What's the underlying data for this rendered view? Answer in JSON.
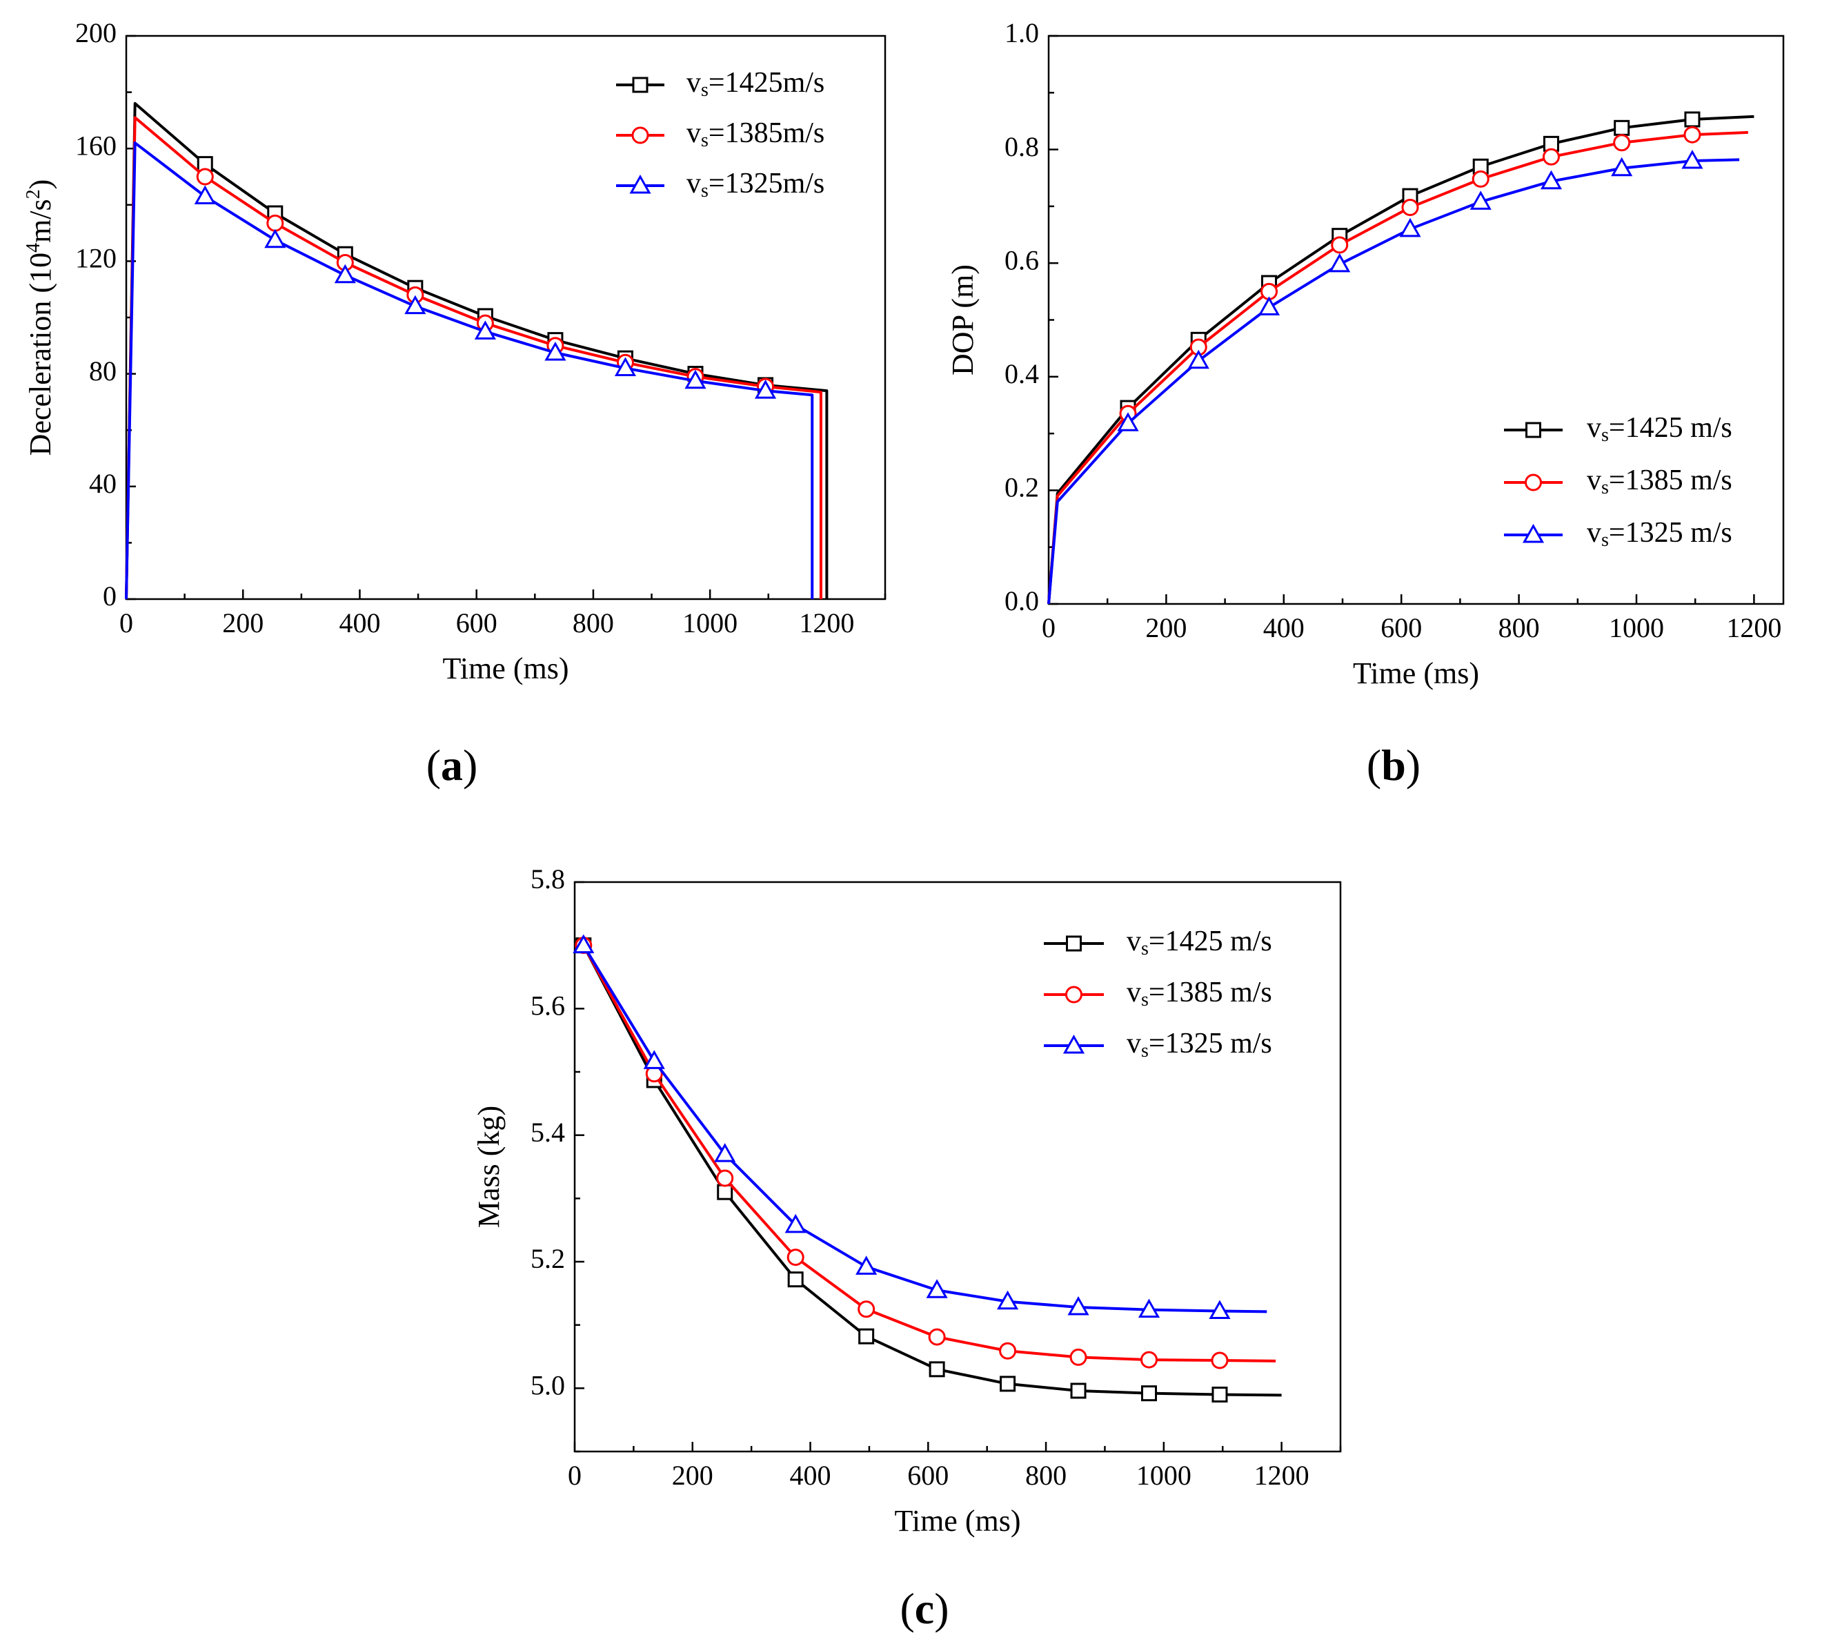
{
  "colors": {
    "black_series": "#000000",
    "red_series": "#ff0000",
    "blue_series": "#0000ff"
  },
  "chart_data": [
    {
      "id": "a",
      "type": "line",
      "panel_label": {
        "open": "(",
        "letter": "a",
        "close": ")"
      },
      "xlabel": "Time (ms)",
      "ylabel": {
        "main": "Deceleration (10",
        "sup1": "4",
        "mid": "m/s",
        "sup2": "2",
        "end": ")"
      },
      "xlim": [
        0,
        1300
      ],
      "ylim": [
        0,
        200
      ],
      "xticks": [
        0,
        200,
        400,
        600,
        800,
        1000,
        1200
      ],
      "yticks": [
        0,
        40,
        80,
        120,
        160,
        200
      ],
      "legend_placement": "top-right",
      "series": [
        {
          "legend": {
            "prefix": "v",
            "sub": "s",
            "suffix": "=1425m/s"
          },
          "color": "#000000",
          "marker": "square",
          "x": [
            0,
            15,
            135,
            255,
            375,
            495,
            615,
            735,
            855,
            975,
            1095,
            1200,
            1200
          ],
          "y": [
            0,
            176,
            154.5,
            137,
            122.5,
            110.5,
            100.5,
            92,
            85.5,
            80,
            76,
            74,
            0
          ],
          "marker_x": [
            135,
            255,
            375,
            495,
            615,
            735,
            855,
            975,
            1095
          ]
        },
        {
          "legend": {
            "prefix": "v",
            "sub": "s",
            "suffix": "=1385m/s"
          },
          "color": "#ff0000",
          "marker": "circle",
          "x": [
            0,
            15,
            135,
            255,
            375,
            495,
            615,
            735,
            855,
            975,
            1095,
            1190,
            1190
          ],
          "y": [
            0,
            171,
            150,
            133.5,
            119.5,
            108,
            98,
            90,
            84,
            79,
            75.5,
            73.5,
            0
          ],
          "marker_x": [
            135,
            255,
            375,
            495,
            615,
            735,
            855,
            975,
            1095
          ]
        },
        {
          "legend": {
            "prefix": "v",
            "sub": "s",
            "suffix": "=1325m/s"
          },
          "color": "#0000ff",
          "marker": "triangle",
          "x": [
            0,
            15,
            135,
            255,
            375,
            495,
            615,
            735,
            855,
            975,
            1095,
            1175,
            1175
          ],
          "y": [
            0,
            162,
            143,
            127.5,
            115,
            104,
            95,
            87.5,
            82,
            77.5,
            74,
            72.5,
            0
          ],
          "marker_x": [
            135,
            255,
            375,
            495,
            615,
            735,
            855,
            975,
            1095
          ]
        }
      ]
    },
    {
      "id": "b",
      "type": "line",
      "panel_label": {
        "open": "(",
        "letter": "b",
        "close": ")"
      },
      "xlabel": "Time (ms)",
      "ylabel": {
        "main": "DOP (m)"
      },
      "xlim": [
        0,
        1250
      ],
      "ylim": [
        0,
        1.0
      ],
      "xticks": [
        0,
        200,
        400,
        600,
        800,
        1000,
        1200
      ],
      "yticks": [
        0.0,
        0.2,
        0.4,
        0.6,
        0.8,
        1.0
      ],
      "ytick_labels": [
        "0.0",
        "0.2",
        "0.4",
        "0.6",
        "0.8",
        "1.0"
      ],
      "legend_placement": "bottom-right",
      "series": [
        {
          "legend": {
            "prefix": "v",
            "sub": "s",
            "suffix": "=1425 m/s"
          },
          "color": "#000000",
          "marker": "square",
          "x": [
            0,
            15,
            135,
            255,
            375,
            495,
            615,
            735,
            855,
            975,
            1095,
            1200
          ],
          "y": [
            0,
            0.195,
            0.345,
            0.465,
            0.565,
            0.648,
            0.718,
            0.77,
            0.81,
            0.838,
            0.853,
            0.858
          ],
          "marker_x": [
            135,
            255,
            375,
            495,
            615,
            735,
            855,
            975,
            1095
          ]
        },
        {
          "legend": {
            "prefix": "v",
            "sub": "s",
            "suffix": "=1385 m/s"
          },
          "color": "#ff0000",
          "marker": "circle",
          "x": [
            0,
            15,
            135,
            255,
            375,
            495,
            615,
            735,
            855,
            975,
            1095,
            1190
          ],
          "y": [
            0,
            0.19,
            0.335,
            0.452,
            0.55,
            0.632,
            0.698,
            0.748,
            0.787,
            0.812,
            0.826,
            0.83
          ],
          "marker_x": [
            135,
            255,
            375,
            495,
            615,
            735,
            855,
            975,
            1095
          ]
        },
        {
          "legend": {
            "prefix": "v",
            "sub": "s",
            "suffix": "=1325 m/s"
          },
          "color": "#0000ff",
          "marker": "triangle",
          "x": [
            0,
            15,
            135,
            255,
            375,
            495,
            615,
            735,
            855,
            975,
            1095,
            1175
          ],
          "y": [
            0,
            0.18,
            0.318,
            0.428,
            0.522,
            0.598,
            0.66,
            0.708,
            0.744,
            0.767,
            0.78,
            0.782
          ],
          "marker_x": [
            135,
            255,
            375,
            495,
            615,
            735,
            855,
            975,
            1095
          ]
        }
      ]
    },
    {
      "id": "c",
      "type": "line",
      "panel_label": {
        "open": "(",
        "letter": "c",
        "close": ")"
      },
      "xlabel": "Time (ms)",
      "ylabel": {
        "main": "Mass (kg)"
      },
      "xlim": [
        0,
        1300
      ],
      "ylim": [
        4.9,
        5.8
      ],
      "xticks": [
        0,
        200,
        400,
        600,
        800,
        1000,
        1200
      ],
      "yticks": [
        5.0,
        5.2,
        5.4,
        5.6,
        5.8
      ],
      "ytick_labels": [
        "5.0",
        "5.2",
        "5.4",
        "5.6",
        "5.8"
      ],
      "legend_placement": "top-right",
      "series": [
        {
          "legend": {
            "prefix": "v",
            "sub": "s",
            "suffix": "=1425 m/s"
          },
          "color": "#000000",
          "marker": "square",
          "x": [
            15,
            135,
            255,
            375,
            495,
            615,
            735,
            855,
            975,
            1095,
            1200
          ],
          "y": [
            5.7,
            5.487,
            5.31,
            5.172,
            5.082,
            5.03,
            5.007,
            4.996,
            4.992,
            4.99,
            4.989
          ],
          "marker_x": [
            15,
            135,
            255,
            375,
            495,
            615,
            735,
            855,
            975,
            1095
          ]
        },
        {
          "legend": {
            "prefix": "v",
            "sub": "s",
            "suffix": "=1385 m/s"
          },
          "color": "#ff0000",
          "marker": "circle",
          "x": [
            15,
            135,
            255,
            375,
            495,
            615,
            735,
            855,
            975,
            1095,
            1190
          ],
          "y": [
            5.7,
            5.497,
            5.332,
            5.207,
            5.125,
            5.081,
            5.059,
            5.049,
            5.045,
            5.044,
            5.043
          ],
          "marker_x": [
            15,
            135,
            255,
            375,
            495,
            615,
            735,
            855,
            975,
            1095
          ]
        },
        {
          "legend": {
            "prefix": "v",
            "sub": "s",
            "suffix": "=1325 m/s"
          },
          "color": "#0000ff",
          "marker": "triangle",
          "x": [
            15,
            135,
            255,
            375,
            495,
            615,
            735,
            855,
            975,
            1095,
            1175
          ],
          "y": [
            5.7,
            5.517,
            5.37,
            5.258,
            5.192,
            5.155,
            5.137,
            5.128,
            5.124,
            5.122,
            5.121
          ],
          "marker_x": [
            15,
            135,
            255,
            375,
            495,
            615,
            735,
            855,
            975,
            1095
          ]
        }
      ]
    }
  ]
}
